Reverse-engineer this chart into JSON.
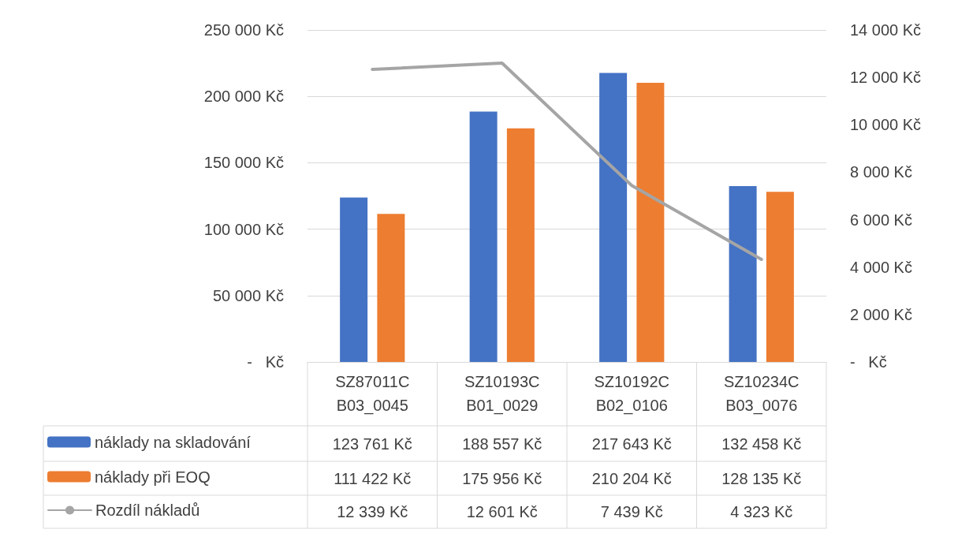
{
  "chart_data": {
    "type": "bar",
    "categories": [
      "SZ87011CB03_0045",
      "SZ10193CB01_0029",
      "SZ10192CB02_0106",
      "SZ10234CB03_0076"
    ],
    "series": [
      {
        "name": "náklady na skladování",
        "color": "#4472c4",
        "values": [
          123761,
          188557,
          217643,
          132458
        ],
        "value_labels": [
          "123 761 Kč",
          "188 557 Kč",
          "217 643 Kč",
          "132 458 Kč"
        ]
      },
      {
        "name": "náklady při EOQ",
        "color": "#ed7d31",
        "values": [
          111422,
          175956,
          210204,
          128135
        ],
        "value_labels": [
          "111 422 Kč",
          "175 956 Kč",
          "210 204 Kč",
          "128 135 Kč"
        ]
      },
      {
        "name": "Rozdíl nákladů",
        "type": "line",
        "axis": "y2",
        "color": "#a5a5a5",
        "values": [
          12339,
          12601,
          7439,
          4323
        ],
        "value_labels": [
          "12 339 Kč",
          "12 601 Kč",
          "7 439 Kč",
          "4 323 Kč"
        ]
      }
    ],
    "ylim": [
      0,
      250000
    ],
    "yticks": [
      {
        "value": 0,
        "label": "-   Kč"
      },
      {
        "value": 50000,
        "label": "50 000 Kč"
      },
      {
        "value": 100000,
        "label": "100 000 Kč"
      },
      {
        "value": 150000,
        "label": "150 000 Kč"
      },
      {
        "value": 200000,
        "label": "200 000 Kč"
      },
      {
        "value": 250000,
        "label": "250 000 Kč"
      }
    ],
    "y2lim": [
      0,
      14000
    ],
    "y2ticks": [
      {
        "value": 0,
        "label": "-   Kč"
      },
      {
        "value": 2000,
        "label": "2 000 Kč"
      },
      {
        "value": 4000,
        "label": "4 000 Kč"
      },
      {
        "value": 6000,
        "label": "6 000 Kč"
      },
      {
        "value": 8000,
        "label": "8 000 Kč"
      },
      {
        "value": 10000,
        "label": "10 000 Kč"
      },
      {
        "value": 12000,
        "label": "12 000 Kč"
      },
      {
        "value": 14000,
        "label": "14 000 Kč"
      }
    ],
    "grid": "y",
    "legend": "bottom left",
    "marker": "none"
  }
}
